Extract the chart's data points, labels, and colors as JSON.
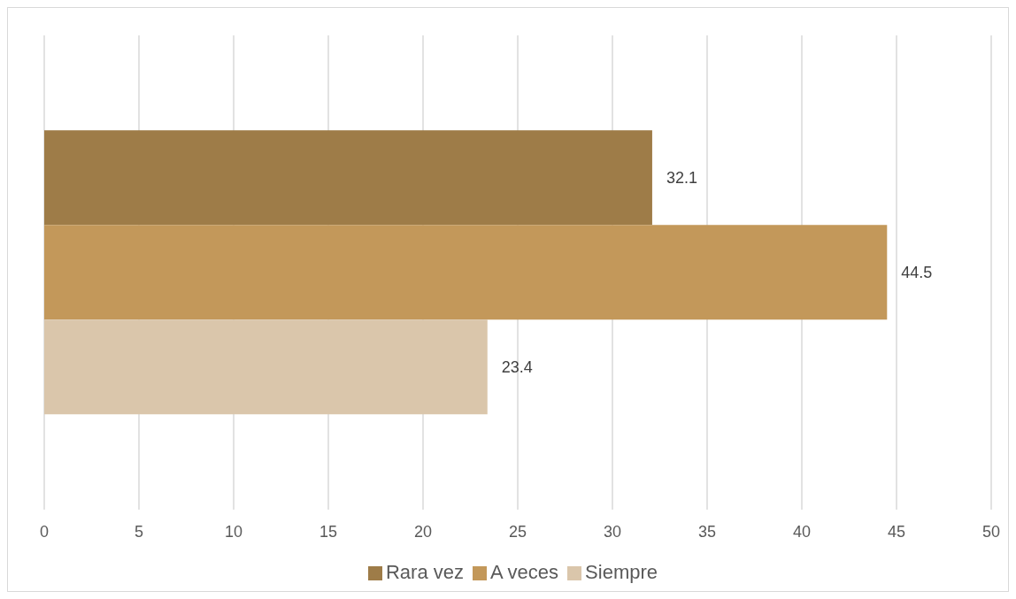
{
  "chart_data": {
    "type": "bar",
    "orientation": "horizontal",
    "categories": [
      null
    ],
    "series": [
      {
        "name": "Rara vez",
        "color": "#9e7c48",
        "values": [
          32.1
        ]
      },
      {
        "name": "A veces",
        "color": "#c3985a",
        "values": [
          44.5
        ]
      },
      {
        "name": "Siempre",
        "color": "#dac6ab",
        "values": [
          23.4
        ]
      }
    ],
    "xlim": [
      0,
      50
    ],
    "xticks": [
      0,
      5,
      10,
      15,
      20,
      25,
      30,
      35,
      40,
      45,
      50
    ],
    "grid": "x",
    "legend": "bottom",
    "data_labels": true
  }
}
